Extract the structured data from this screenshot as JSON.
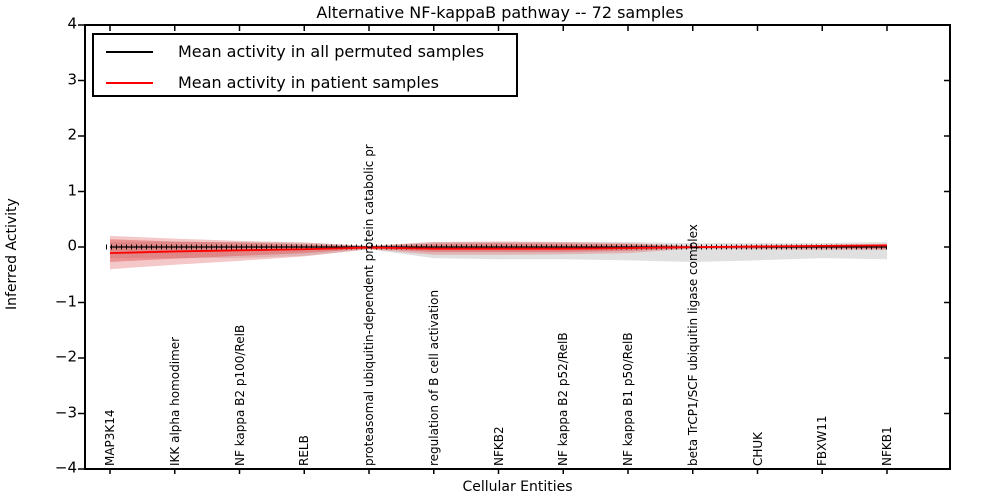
{
  "window": {
    "title": "Alternative NF-kappaB pathway -- 72 samples"
  },
  "chart_data": {
    "type": "line",
    "title": "Alternative NF-kappaB pathway -- 72 samples",
    "xlabel": "Cellular Entities",
    "ylabel": "Inferred Activity",
    "ylim": [
      -4,
      4
    ],
    "yticks": [
      -4,
      -3,
      -2,
      -1,
      0,
      1,
      2,
      3,
      4
    ],
    "grid": false,
    "legend_position": "upper left",
    "categories": [
      "MAP3K14",
      "IKK alpha homodimer",
      "NF kappa B2 p100/RelB",
      "RELB",
      "proteasomal ubiquitin-dependent protein catabolic pr",
      "regulation of B cell activation",
      "NFKB2",
      "NF kappa B2 p52/RelB",
      "NF kappa B1 p50/RelB",
      "beta TrCP1/SCF ubiquitin ligase complex",
      "CHUK",
      "FBXW11",
      "NFKB1"
    ],
    "series": [
      {
        "name": "Mean activity in all permuted samples",
        "color": "#000000",
        "style": "solid-with-tick-markers",
        "values": [
          0,
          0,
          0,
          0,
          0,
          0,
          0,
          0,
          0,
          0,
          0,
          0,
          0
        ]
      },
      {
        "name": "Mean activity in patient samples",
        "color": "#ff0000",
        "style": "solid",
        "values": [
          -0.11,
          -0.08,
          -0.06,
          -0.04,
          -0.01,
          -0.03,
          -0.03,
          -0.03,
          -0.02,
          -0.005,
          0.01,
          0.02,
          0.03
        ]
      }
    ],
    "bands": [
      {
        "name": "permuted-samples-range",
        "color": "#999999",
        "opacity": 0.3,
        "upper": [
          0.09,
          0.09,
          0.09,
          0.08,
          0.02,
          0.09,
          0.09,
          0.09,
          0.09,
          0.07,
          0.07,
          0.07,
          0.09
        ],
        "lower": [
          -0.2,
          -0.2,
          -0.2,
          -0.16,
          -0.04,
          -0.2,
          -0.22,
          -0.22,
          -0.24,
          -0.27,
          -0.24,
          -0.2,
          -0.22
        ]
      },
      {
        "name": "patient-samples-outer-range",
        "color": "#e06060",
        "opacity": 0.35,
        "upper": [
          0.2,
          0.15,
          0.11,
          0.08,
          0.02,
          0.09,
          0.1,
          0.09,
          0.07,
          0.02,
          0.02,
          0.03,
          0.03
        ],
        "lower": [
          -0.4,
          -0.32,
          -0.25,
          -0.17,
          -0.04,
          -0.14,
          -0.14,
          -0.13,
          -0.11,
          -0.03,
          -0.04,
          -0.05,
          -0.05
        ]
      },
      {
        "name": "patient-samples-inner-range",
        "color": "#e04040",
        "opacity": 0.4,
        "upper": [
          0.14,
          0.1,
          0.08,
          0.05,
          0.015,
          0.06,
          0.07,
          0.06,
          0.05,
          0.015,
          0.015,
          0.02,
          0.02
        ],
        "lower": [
          -0.27,
          -0.21,
          -0.16,
          -0.11,
          -0.03,
          -0.09,
          -0.09,
          -0.09,
          -0.07,
          -0.02,
          -0.03,
          -0.03,
          -0.04
        ]
      }
    ]
  },
  "legend": {
    "entries": [
      {
        "label": "Mean activity in all permuted samples",
        "color": "#000000"
      },
      {
        "label": "Mean activity in patient samples",
        "color": "#ff0000"
      }
    ]
  }
}
